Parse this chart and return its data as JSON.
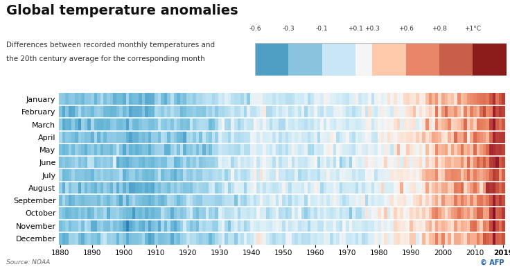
{
  "title": "Global temperature anomalies",
  "subtitle_line1": "Differences between recorded monthly temperatures and",
  "subtitle_line2": "the 20th century average for the corresponding month",
  "source": "Source: NOAA",
  "months": [
    "January",
    "February",
    "March",
    "April",
    "May",
    "June",
    "July",
    "August",
    "September",
    "October",
    "November",
    "December"
  ],
  "year_start": 1880,
  "year_end": 2019,
  "colorbar_labels": [
    "-0.6",
    "-0.3",
    "-0.1",
    "+0.1",
    "+0.3",
    "+0.6",
    "+0.8",
    "+1°C"
  ],
  "colorbar_values": [
    -0.6,
    -0.3,
    -0.1,
    0.1,
    0.3,
    0.6,
    0.8,
    1.0
  ],
  "colorbar_colors": [
    "#4f9ec4",
    "#88c4de",
    "#c8e6f5",
    "#ffffff",
    "#fdc9aa",
    "#e88468",
    "#c95e4a",
    "#8b1a1a"
  ],
  "vmin": -0.8,
  "vmax": 1.2,
  "background_color": "#ffffff",
  "title_fontsize": 14,
  "subtitle_fontsize": 7.5,
  "axis_tick_fontsize": 7.5,
  "month_fontsize": 8
}
